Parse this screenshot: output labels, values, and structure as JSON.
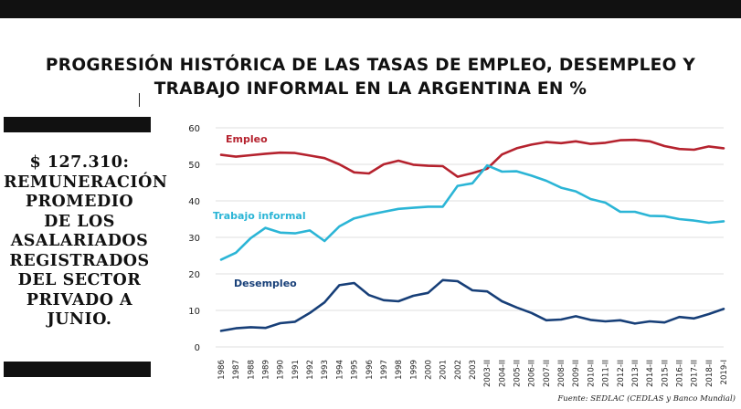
{
  "title": {
    "line1": "PROGRESIÓN HISTÓRICA DE LAS TASAS DE EMPLEO, DESEMPLEO Y",
    "line2": "TRABAJO INFORMAL EN LA ARGENTINA EN %"
  },
  "callout": {
    "amount": "$ 127.310:",
    "text": "REMUNERACIÓN\nPROMEDIO\nDE LOS\nASALARIADOS\nREGISTRADOS\nDEL SECTOR\nPRIVADO A\nJUNIO."
  },
  "source": "Fuente:  SEDLAC (CEDLAS y Banco Mundial)",
  "chart_data": {
    "type": "line",
    "title": "PROGRESIÓN HISTÓRICA DE LAS TASAS DE EMPLEO, DESEMPLEO Y TRABAJO INFORMAL EN LA ARGENTINA EN %",
    "ylim": [
      0,
      60
    ],
    "yticks": [
      0,
      10,
      20,
      30,
      40,
      50,
      60
    ],
    "grid": true,
    "x": [
      "1986",
      "1987",
      "1988",
      "1989",
      "1990",
      "1991",
      "1992",
      "1993",
      "1994",
      "1995",
      "1996",
      "1997",
      "1998",
      "1999",
      "2000",
      "2001",
      "2002",
      "2003",
      "2003-II",
      "2004-II",
      "2005-II",
      "2006-II",
      "2007-II",
      "2008-II",
      "2009-II",
      "2010-II",
      "2011-II",
      "2012-II",
      "2013-II",
      "2014-II",
      "2015-II",
      "2016-II",
      "2017-II",
      "2018-II",
      "2019-I"
    ],
    "series": [
      {
        "name": "Empleo",
        "color": "#b5222e",
        "values": [
          52.6,
          52.1,
          52.5,
          52.9,
          53.2,
          53.1,
          52.4,
          51.7,
          50.0,
          47.8,
          47.5,
          50.0,
          51.0,
          49.9,
          49.6,
          49.5,
          46.6,
          47.6,
          48.8,
          52.7,
          54.4,
          55.4,
          56.1,
          55.8,
          56.3,
          55.6,
          55.9,
          56.6,
          56.7,
          56.3,
          55.0,
          54.2,
          54.0,
          54.9,
          54.4
        ]
      },
      {
        "name": "Trabajo informal",
        "color": "#2bb5d6",
        "values": [
          23.9,
          25.8,
          29.8,
          32.6,
          31.3,
          31.1,
          31.9,
          29.0,
          33.0,
          35.2,
          36.2,
          37.0,
          37.8,
          38.1,
          38.4,
          38.4,
          44.1,
          44.8,
          49.7,
          48.0,
          48.1,
          46.9,
          45.5,
          43.6,
          42.6,
          40.5,
          39.5,
          37.0,
          37.0,
          35.9,
          35.8,
          35.0,
          34.6,
          34.0,
          34.4
        ]
      },
      {
        "name": "Desempleo",
        "color": "#173f78",
        "values": [
          4.4,
          5.1,
          5.4,
          5.2,
          6.5,
          6.9,
          9.3,
          12.2,
          16.9,
          17.5,
          14.2,
          12.8,
          12.5,
          14.0,
          14.8,
          18.3,
          18.0,
          15.5,
          15.2,
          12.5,
          10.8,
          9.3,
          7.3,
          7.5,
          8.4,
          7.4,
          7.0,
          7.3,
          6.4,
          7.0,
          6.7,
          8.2,
          7.8,
          9.0,
          10.4
        ]
      }
    ]
  }
}
